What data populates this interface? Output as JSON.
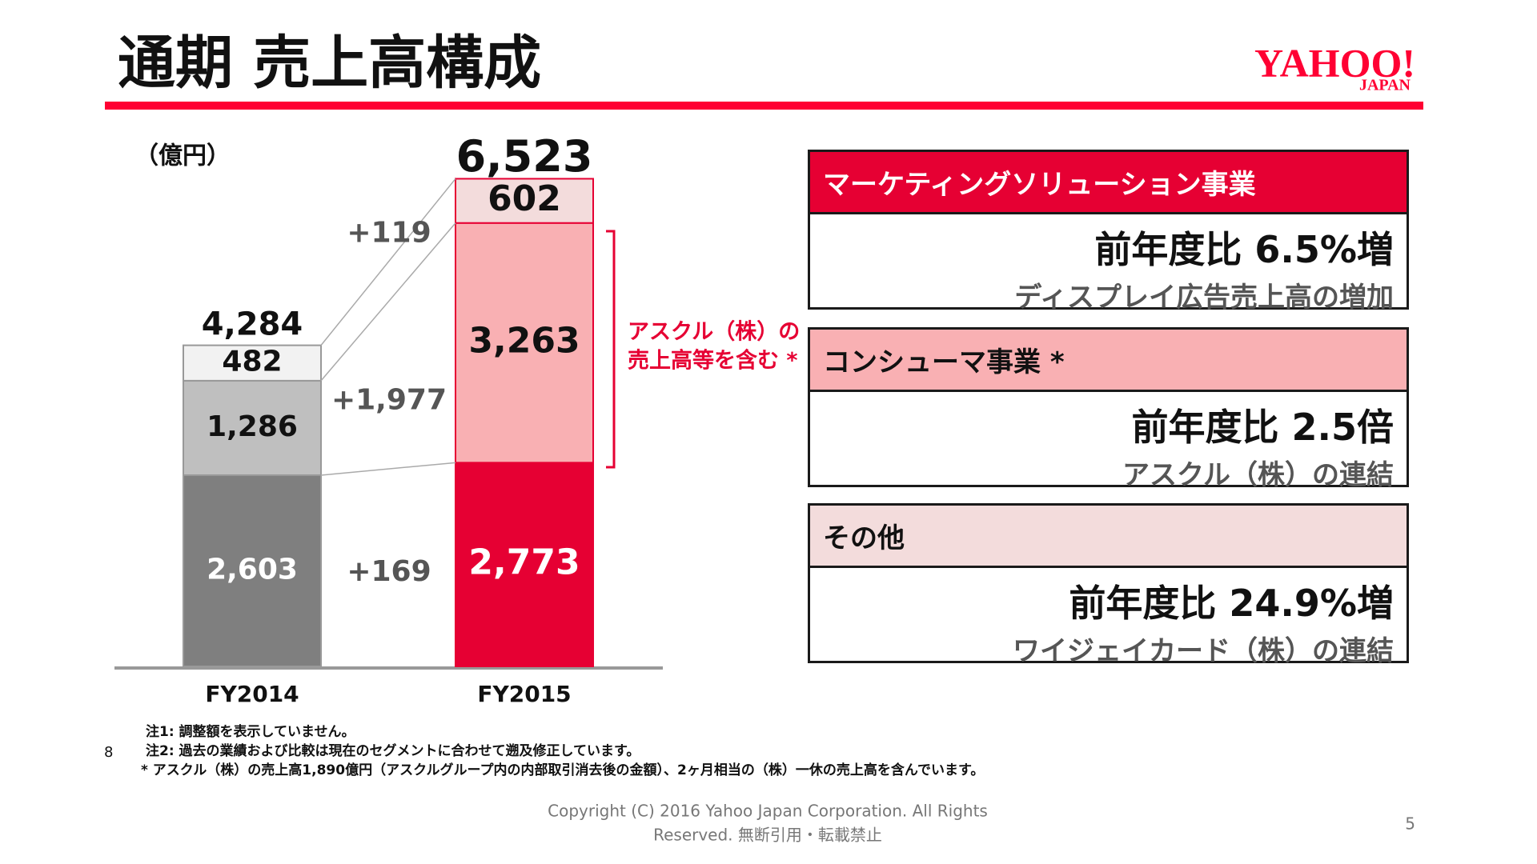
{
  "header": {
    "title": "通期 売上高構成",
    "logo": "YAHOO!",
    "logo_sub": "JAPAN"
  },
  "chart_data": {
    "type": "bar",
    "stacked": true,
    "unit_label": "（億円）",
    "categories": [
      "FY2014",
      "FY2015"
    ],
    "series": [
      {
        "colors": [
          "#7f7f7f",
          "#e60033"
        ],
        "values": [
          2603,
          2773
        ],
        "value_labels": [
          "2,603",
          "2,773"
        ]
      },
      {
        "colors": [
          "#bfbfbf",
          "#f9b0b3"
        ],
        "values": [
          1286,
          3263
        ],
        "value_labels": [
          "1,286",
          "3,263"
        ]
      },
      {
        "colors": [
          "#f2f2f2",
          "#f3dcdc"
        ],
        "values": [
          482,
          602
        ]
      }
    ],
    "totals": [
      {
        "value": 4284,
        "label": "4,284"
      },
      {
        "value": 6523,
        "label": "6,523"
      }
    ],
    "changes": [
      {
        "value": 169,
        "label": "+169"
      },
      {
        "value": 1977,
        "label": "+1,977"
      },
      {
        "value": 119,
        "label": "+119"
      }
    ],
    "annotation": [
      "アスクル（株）の",
      "売上高等を含む *"
    ]
  },
  "panels": [
    {
      "header": "マーケティングソリューション事業",
      "headline": "前年度比 6.5%増",
      "detail": "ディスプレイ広告売上高の増加"
    },
    {
      "header": "コンシューマ事業 *",
      "headline": "前年度比 2.5倍",
      "detail": "アスクル（株）の連結"
    },
    {
      "header": "その他",
      "headline": "前年度比 24.9%増",
      "detail": "ワイジェイカード（株）の連結"
    }
  ],
  "notes": [
    "注1: 調整額を表示していません。",
    "注2: 過去の業績および比較は現在のセグメントに合わせて遡及修正しています。",
    "* アスクル（株）の売上高1,890億円（アスクルグループ内の内部取引消去後の金額）、2ヶ月相当の（株）一休の売上高を含んでいます。"
  ],
  "page_marker": "8",
  "copyright": [
    "Copyright (C) 2016 Yahoo Japan Corporation. All Rights",
    "Reserved. 無断引用・転載禁止"
  ],
  "page_number": "5"
}
